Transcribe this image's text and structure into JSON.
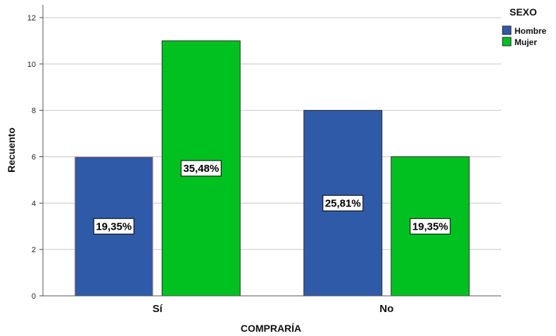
{
  "chart_data": {
    "type": "bar",
    "categories": [
      "Sí",
      "No"
    ],
    "series": [
      {
        "name": "Hombre",
        "values": [
          6,
          8
        ],
        "labels": [
          "19,35%",
          "25,81%"
        ],
        "color": "#2f5aa8"
      },
      {
        "name": "Mujer",
        "values": [
          11,
          6
        ],
        "labels": [
          "35,48%",
          "19,35%"
        ],
        "color": "#00c11f"
      }
    ],
    "xlabel": "COMPRARÍA",
    "ylabel": "Recuento",
    "ylim": [
      0,
      12
    ],
    "yticks": [
      "0",
      "2",
      "4",
      "6",
      "8",
      "10",
      "12"
    ],
    "legend_title": "SEXO",
    "legend_position": "top-right",
    "grid": true
  }
}
